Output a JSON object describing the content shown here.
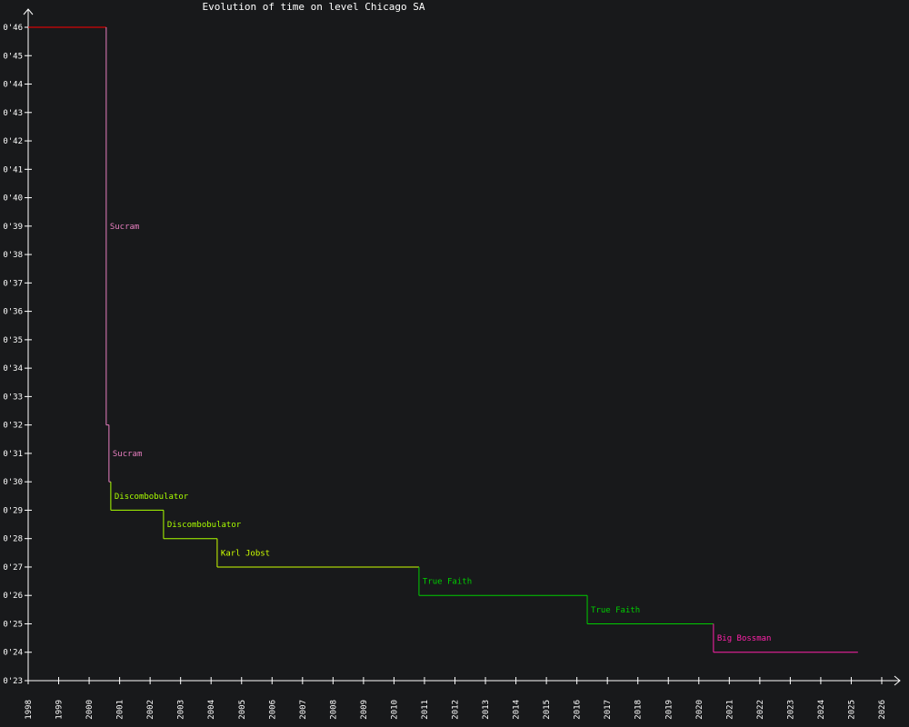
{
  "chart_data": {
    "type": "line",
    "step": true,
    "title": "Evolution of time on level Chicago SA",
    "xlabel": "",
    "ylabel": "",
    "xlim": [
      1998,
      2026
    ],
    "ylim": [
      23,
      46
    ],
    "x_ticks": [
      "1998",
      "1999",
      "2000",
      "2001",
      "2002",
      "2003",
      "2004",
      "2005",
      "2006",
      "2007",
      "2008",
      "2009",
      "2010",
      "2011",
      "2012",
      "2013",
      "2014",
      "2015",
      "2016",
      "2017",
      "2018",
      "2019",
      "2020",
      "2021",
      "2022",
      "2023",
      "2024",
      "2025",
      "2026"
    ],
    "y_ticks": [
      "0'23",
      "0'24",
      "0'25",
      "0'26",
      "0'27",
      "0'28",
      "0'29",
      "0'30",
      "0'31",
      "0'32",
      "0'33",
      "0'34",
      "0'35",
      "0'36",
      "0'37",
      "0'38",
      "0'39",
      "0'40",
      "0'41",
      "0'42",
      "0'43",
      "0'44",
      "0'45",
      "0'46"
    ],
    "grid": false,
    "records": [
      {
        "date": 1998.0,
        "time": 46,
        "label": "",
        "color": "#ff0000"
      },
      {
        "date": 2000.56,
        "time": 32,
        "label": "Sucram",
        "color": "#e87fc0"
      },
      {
        "date": 2000.65,
        "time": 30,
        "label": "Sucram",
        "color": "#e87fc0"
      },
      {
        "date": 2000.71,
        "time": 29,
        "label": "Discombobulator",
        "color": "#aaff00"
      },
      {
        "date": 2002.44,
        "time": 28,
        "label": "Discombobulator",
        "color": "#aaff00"
      },
      {
        "date": 2004.2,
        "time": 27,
        "label": "Karl Jobst",
        "color": "#ccff00"
      },
      {
        "date": 2010.82,
        "time": 26,
        "label": "True Faith",
        "color": "#00cc00"
      },
      {
        "date": 2016.34,
        "time": 25,
        "label": "True Faith",
        "color": "#00cc00"
      },
      {
        "date": 2020.48,
        "time": 24,
        "label": "Big Bossman",
        "color": "#ff22aa"
      }
    ],
    "end_date": 2025.22,
    "axis_color": "#ffffff",
    "background": "#18191b"
  }
}
